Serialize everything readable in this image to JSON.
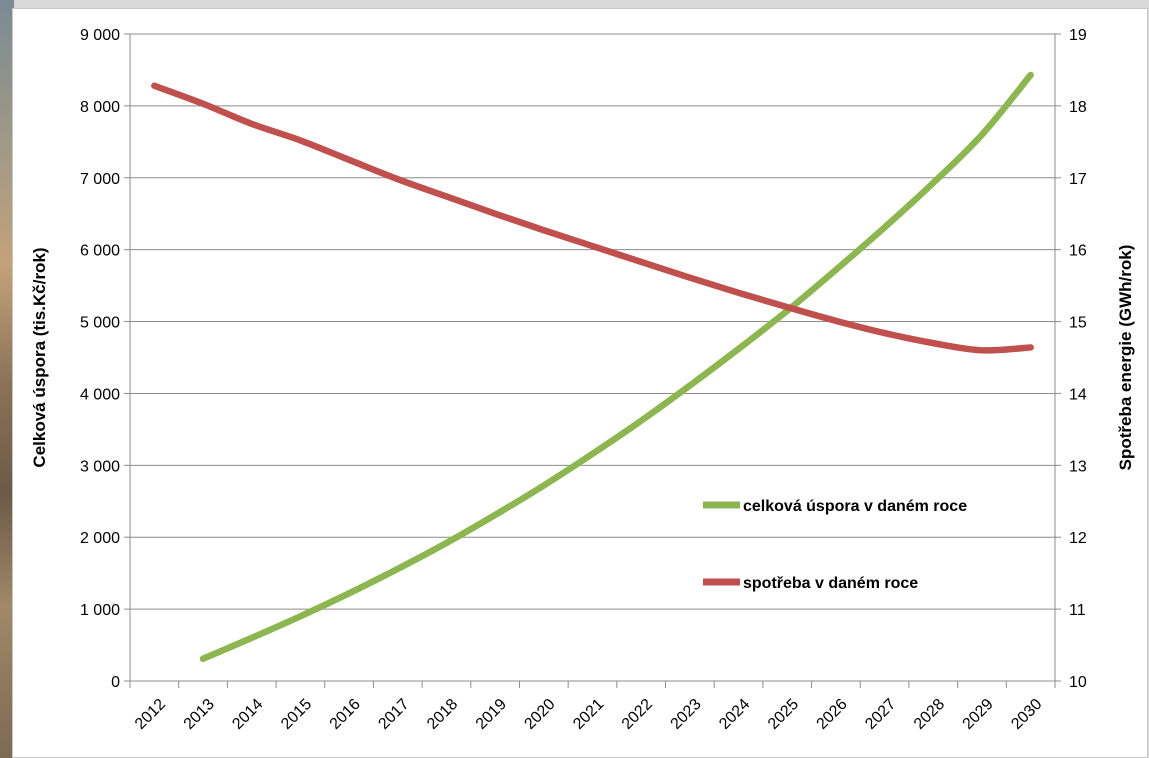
{
  "chart_data": {
    "type": "line",
    "x": [
      "2012",
      "2013",
      "2014",
      "2015",
      "2016",
      "2017",
      "2018",
      "2019",
      "2020",
      "2021",
      "2022",
      "2023",
      "2024",
      "2025",
      "2026",
      "2027",
      "2028",
      "2029",
      "2030"
    ],
    "series": [
      {
        "name": "celková úspora v daném roce",
        "axis": "left",
        "color": "#8db650",
        "values": [
          null,
          310,
          600,
          900,
          1220,
          1560,
          1920,
          2310,
          2720,
          3160,
          3620,
          4110,
          4620,
          5150,
          5720,
          6310,
          6930,
          7600,
          8430
        ]
      },
      {
        "name": "spotřeba v daném roce",
        "axis": "right",
        "color": "#c0504d",
        "values": [
          18.28,
          18.03,
          17.75,
          17.52,
          17.25,
          16.98,
          16.74,
          16.5,
          16.27,
          16.05,
          15.83,
          15.61,
          15.4,
          15.2,
          15.01,
          14.84,
          14.7,
          14.6,
          14.64
        ]
      }
    ],
    "y_left": {
      "label": "Celková úspora  (tis.Kč/rok)",
      "ylim": [
        0,
        9000
      ],
      "ticks": [
        "0",
        "1 000",
        "2 000",
        "3 000",
        "4 000",
        "5 000",
        "6 000",
        "7 000",
        "8 000",
        "9 000"
      ]
    },
    "y_right": {
      "label": "Spotřeba energie  (GWh/rok)",
      "ylim": [
        10,
        19
      ],
      "ticks": [
        "10",
        "11",
        "12",
        "13",
        "14",
        "15",
        "16",
        "17",
        "18",
        "19"
      ]
    },
    "grid": true,
    "legend_position": "inside-right"
  }
}
